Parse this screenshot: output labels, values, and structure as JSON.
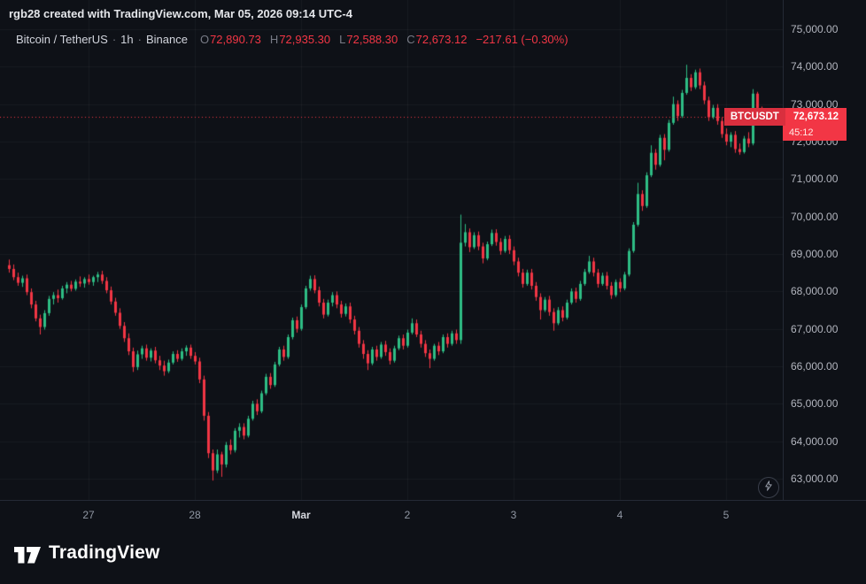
{
  "watermark": "rgb28 created with TradingView.com, Mar 05, 2026 09:14 UTC-4",
  "legend": {
    "symbol_title": "Bitcoin / TetherUS",
    "sep": "·",
    "interval": "1h",
    "exchange": "Binance",
    "o_label": "O",
    "o_value": "72,890.73",
    "h_label": "H",
    "h_value": "72,935.30",
    "l_label": "L",
    "l_value": "72,588.30",
    "c_label": "C",
    "c_value": "72,673.12",
    "change": "−217.61 (−0.30%)"
  },
  "price_label": {
    "symbol": "BTCUSDT",
    "price": "72,673.12",
    "countdown": "45:12"
  },
  "logo": {
    "text": "TradingView"
  },
  "icons": {
    "lightning": "lightning-bolt-icon",
    "logo_glyph": "tradingview-mark"
  },
  "price_scale": {
    "ticks": [
      {
        "value": 75000,
        "label": "75,000.00"
      },
      {
        "value": 74000,
        "label": "74,000.00"
      },
      {
        "value": 73000,
        "label": "73,000.00"
      },
      {
        "value": 72000,
        "label": "72,000.00"
      },
      {
        "value": 71000,
        "label": "71,000.00"
      },
      {
        "value": 70000,
        "label": "70,000.00"
      },
      {
        "value": 69000,
        "label": "69,000.00"
      },
      {
        "value": 68000,
        "label": "68,000.00"
      },
      {
        "value": 67000,
        "label": "67,000.00"
      },
      {
        "value": 66000,
        "label": "66,000.00"
      },
      {
        "value": 65000,
        "label": "65,000.00"
      },
      {
        "value": 64000,
        "label": "64,000.00"
      },
      {
        "value": 63000,
        "label": "63,000.00"
      }
    ]
  },
  "time_scale": {
    "labels": [
      {
        "text": "27",
        "index": 18,
        "strong": false
      },
      {
        "text": "28",
        "index": 42,
        "strong": false
      },
      {
        "text": "Mar",
        "index": 66,
        "strong": true
      },
      {
        "text": "2",
        "index": 90,
        "strong": false
      },
      {
        "text": "3",
        "index": 114,
        "strong": false
      },
      {
        "text": "4",
        "index": 138,
        "strong": false
      },
      {
        "text": "5",
        "index": 162,
        "strong": false
      }
    ]
  },
  "chart_data": {
    "type": "candlestick",
    "symbol": "BTCUSDT",
    "exchange": "Binance",
    "interval": "1h",
    "last_price": 72673.12,
    "current_candle": {
      "open": 72890.73,
      "high": 72935.3,
      "low": 72588.3,
      "close": 72673.12,
      "change": -217.61,
      "change_pct": -0.3
    },
    "y_axis_range": [
      62550,
      75780
    ],
    "grid": true,
    "colors": {
      "up": "#2ebd85",
      "down": "#f23645",
      "grid": "rgba(255,255,255,0.045)",
      "price_line": "#f23645",
      "background": "#0e1117"
    },
    "candles": [
      [
        68700,
        68850,
        68500,
        68600
      ],
      [
        68600,
        68720,
        68300,
        68380
      ],
      [
        68380,
        68500,
        68150,
        68230
      ],
      [
        68230,
        68420,
        68120,
        68350
      ],
      [
        68350,
        68450,
        67900,
        67980
      ],
      [
        67980,
        68080,
        67550,
        67650
      ],
      [
        67650,
        67750,
        67200,
        67280
      ],
      [
        67280,
        67380,
        66850,
        67050
      ],
      [
        67050,
        67500,
        66980,
        67420
      ],
      [
        67420,
        67880,
        67350,
        67800
      ],
      [
        67800,
        67980,
        67650,
        67900
      ],
      [
        67900,
        68050,
        67700,
        67820
      ],
      [
        67820,
        68150,
        67780,
        68080
      ],
      [
        68080,
        68250,
        67950,
        68180
      ],
      [
        68180,
        68280,
        68000,
        68070
      ],
      [
        68070,
        68320,
        68020,
        68260
      ],
      [
        68260,
        68400,
        68120,
        68210
      ],
      [
        68210,
        68380,
        68100,
        68330
      ],
      [
        68330,
        68450,
        68180,
        68250
      ],
      [
        68250,
        68420,
        68150,
        68380
      ],
      [
        68380,
        68520,
        68250,
        68450
      ],
      [
        68450,
        68550,
        68200,
        68280
      ],
      [
        68280,
        68380,
        67950,
        68030
      ],
      [
        68030,
        68130,
        67650,
        67730
      ],
      [
        67730,
        67830,
        67350,
        67430
      ],
      [
        67430,
        67550,
        67000,
        67080
      ],
      [
        67080,
        67180,
        66650,
        66750
      ],
      [
        66750,
        66880,
        66300,
        66400
      ],
      [
        66400,
        66500,
        65850,
        65980
      ],
      [
        65980,
        66420,
        65900,
        66320
      ],
      [
        66320,
        66550,
        66200,
        66480
      ],
      [
        66480,
        66580,
        66150,
        66230
      ],
      [
        66230,
        66480,
        66130,
        66420
      ],
      [
        66420,
        66520,
        66080,
        66160
      ],
      [
        66160,
        66280,
        65900,
        66020
      ],
      [
        66020,
        66150,
        65750,
        65870
      ],
      [
        65870,
        66180,
        65820,
        66100
      ],
      [
        66100,
        66400,
        66050,
        66330
      ],
      [
        66330,
        66430,
        66120,
        66200
      ],
      [
        66200,
        66480,
        66150,
        66400
      ],
      [
        66400,
        66560,
        66280,
        66500
      ],
      [
        66500,
        66580,
        66200,
        66280
      ],
      [
        66280,
        66380,
        66050,
        66130
      ],
      [
        66130,
        66230,
        65550,
        65650
      ],
      [
        65650,
        65750,
        64550,
        64680
      ],
      [
        64680,
        64780,
        63550,
        63680
      ],
      [
        63680,
        63780,
        62950,
        63220
      ],
      [
        63220,
        63780,
        63150,
        63650
      ],
      [
        63650,
        63720,
        63050,
        63380
      ],
      [
        63380,
        63980,
        63300,
        63900
      ],
      [
        63900,
        64050,
        63650,
        63760
      ],
      [
        63760,
        64350,
        63700,
        64280
      ],
      [
        64280,
        64480,
        64100,
        64380
      ],
      [
        64380,
        64480,
        64050,
        64150
      ],
      [
        64150,
        64680,
        64100,
        64600
      ],
      [
        64600,
        65080,
        64550,
        65000
      ],
      [
        65000,
        65120,
        64700,
        64800
      ],
      [
        64800,
        65350,
        64750,
        65280
      ],
      [
        65280,
        65800,
        65230,
        65720
      ],
      [
        65720,
        65820,
        65400,
        65500
      ],
      [
        65500,
        66120,
        65450,
        66050
      ],
      [
        66050,
        66520,
        66000,
        66450
      ],
      [
        66450,
        66550,
        66150,
        66250
      ],
      [
        66250,
        66850,
        66200,
        66780
      ],
      [
        66780,
        67300,
        66720,
        67230
      ],
      [
        67230,
        67330,
        66900,
        67000
      ],
      [
        67000,
        67650,
        66950,
        67580
      ],
      [
        67580,
        68150,
        67530,
        68080
      ],
      [
        68080,
        68420,
        68020,
        68330
      ],
      [
        68330,
        68430,
        67950,
        68030
      ],
      [
        68030,
        68130,
        67600,
        67700
      ],
      [
        67700,
        67800,
        67280,
        67380
      ],
      [
        67380,
        67780,
        67330,
        67700
      ],
      [
        67700,
        67980,
        67600,
        67900
      ],
      [
        67900,
        68000,
        67550,
        67650
      ],
      [
        67650,
        67750,
        67300,
        67400
      ],
      [
        67400,
        67680,
        67330,
        67600
      ],
      [
        67600,
        67700,
        67150,
        67250
      ],
      [
        67250,
        67350,
        66850,
        66950
      ],
      [
        66950,
        67050,
        66500,
        66600
      ],
      [
        66600,
        66700,
        66200,
        66330
      ],
      [
        66330,
        66430,
        65900,
        66080
      ],
      [
        66080,
        66520,
        66030,
        66450
      ],
      [
        66450,
        66550,
        66150,
        66250
      ],
      [
        66250,
        66650,
        66200,
        66580
      ],
      [
        66580,
        66680,
        66280,
        66380
      ],
      [
        66380,
        66480,
        66050,
        66150
      ],
      [
        66150,
        66550,
        66100,
        66480
      ],
      [
        66480,
        66820,
        66430,
        66750
      ],
      [
        66750,
        66850,
        66450,
        66550
      ],
      [
        66550,
        66980,
        66500,
        66900
      ],
      [
        66900,
        67280,
        66850,
        67150
      ],
      [
        67150,
        67250,
        66780,
        66850
      ],
      [
        66850,
        66950,
        66500,
        66600
      ],
      [
        66600,
        66700,
        66250,
        66350
      ],
      [
        66350,
        66450,
        65950,
        66200
      ],
      [
        66200,
        66600,
        66150,
        66550
      ],
      [
        66550,
        66650,
        66300,
        66400
      ],
      [
        66400,
        66850,
        66350,
        66780
      ],
      [
        66780,
        66880,
        66500,
        66600
      ],
      [
        66600,
        66950,
        66550,
        66880
      ],
      [
        66880,
        66980,
        66600,
        66700
      ],
      [
        66700,
        70050,
        66600,
        69300
      ],
      [
        69300,
        69800,
        69200,
        69580
      ],
      [
        69580,
        69680,
        69050,
        69180
      ],
      [
        69180,
        69580,
        69130,
        69500
      ],
      [
        69500,
        69600,
        69100,
        69200
      ],
      [
        69200,
        69300,
        68750,
        68880
      ],
      [
        68880,
        69330,
        68830,
        69260
      ],
      [
        69260,
        69650,
        69210,
        69560
      ],
      [
        69560,
        69660,
        69220,
        69320
      ],
      [
        69320,
        69420,
        68980,
        69080
      ],
      [
        69080,
        69480,
        69030,
        69400
      ],
      [
        69400,
        69500,
        69000,
        69100
      ],
      [
        69100,
        69200,
        68700,
        68800
      ],
      [
        68800,
        68900,
        68400,
        68500
      ],
      [
        68500,
        68600,
        68100,
        68200
      ],
      [
        68200,
        68580,
        68150,
        68500
      ],
      [
        68500,
        68600,
        68050,
        68150
      ],
      [
        68150,
        68250,
        67750,
        67850
      ],
      [
        67850,
        67950,
        67250,
        67500
      ],
      [
        67500,
        67850,
        67450,
        67780
      ],
      [
        67780,
        67880,
        67350,
        67450
      ],
      [
        67450,
        67550,
        66950,
        67150
      ],
      [
        67150,
        67580,
        67100,
        67500
      ],
      [
        67500,
        67600,
        67200,
        67300
      ],
      [
        67300,
        67780,
        67250,
        67700
      ],
      [
        67700,
        68080,
        67650,
        68000
      ],
      [
        68000,
        68100,
        67700,
        67800
      ],
      [
        67800,
        68280,
        67750,
        68200
      ],
      [
        68200,
        68600,
        68150,
        68520
      ],
      [
        68520,
        68950,
        68470,
        68800
      ],
      [
        68800,
        68900,
        68400,
        68500
      ],
      [
        68500,
        68600,
        68100,
        68200
      ],
      [
        68200,
        68500,
        68150,
        68420
      ],
      [
        68420,
        68520,
        68050,
        68150
      ],
      [
        68150,
        68250,
        67800,
        67900
      ],
      [
        67900,
        68320,
        67850,
        68250
      ],
      [
        68250,
        68350,
        67980,
        68080
      ],
      [
        68080,
        68520,
        68030,
        68450
      ],
      [
        68450,
        69150,
        68400,
        69080
      ],
      [
        69080,
        69850,
        69030,
        69780
      ],
      [
        69780,
        70900,
        69730,
        70600
      ],
      [
        70600,
        70700,
        70150,
        70280
      ],
      [
        70280,
        71180,
        70230,
        71100
      ],
      [
        71100,
        71900,
        71050,
        71700
      ],
      [
        71700,
        71800,
        71250,
        71380
      ],
      [
        71380,
        72180,
        71330,
        72100
      ],
      [
        72100,
        72200,
        71500,
        71780
      ],
      [
        71780,
        72580,
        71730,
        72500
      ],
      [
        72500,
        73200,
        72450,
        73000
      ],
      [
        73000,
        73100,
        72550,
        72680
      ],
      [
        72680,
        73380,
        72630,
        73300
      ],
      [
        73300,
        74050,
        73250,
        73700
      ],
      [
        73700,
        73800,
        73350,
        73450
      ],
      [
        73450,
        73920,
        73400,
        73850
      ],
      [
        73850,
        73950,
        73400,
        73500
      ],
      [
        73500,
        73600,
        73000,
        73100
      ],
      [
        73100,
        73200,
        72550,
        72650
      ],
      [
        72650,
        72980,
        72600,
        72900
      ],
      [
        72900,
        73000,
        72450,
        72550
      ],
      [
        72550,
        72650,
        72100,
        72200
      ],
      [
        72200,
        72350,
        71900,
        72000
      ],
      [
        72000,
        72250,
        71850,
        72180
      ],
      [
        72180,
        72280,
        71700,
        71800
      ],
      [
        71800,
        71950,
        71650,
        71720
      ],
      [
        71720,
        72150,
        71680,
        72080
      ],
      [
        72080,
        72250,
        71850,
        71950
      ],
      [
        71950,
        73400,
        71900,
        73280
      ],
      [
        73280,
        73330,
        72820,
        72890
      ],
      [
        72890.73,
        72935.3,
        72588.3,
        72673.12
      ]
    ]
  }
}
